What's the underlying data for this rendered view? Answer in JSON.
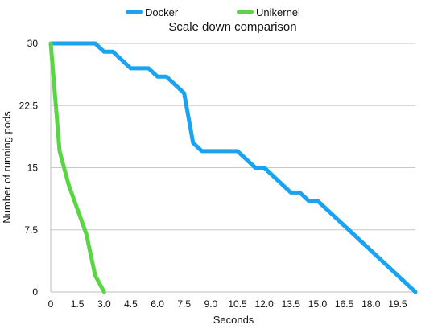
{
  "chart_data": {
    "type": "line",
    "title": "Scale down comparison",
    "xlabel": "Seconds",
    "ylabel": "Number of running pods",
    "xlim": [
      0,
      20.5
    ],
    "ylim": [
      0,
      30
    ],
    "x_ticks": [
      "0",
      "1.5",
      "3.0",
      "4.5",
      "6.0",
      "7.5",
      "9.0",
      "10.5",
      "12.0",
      "13.5",
      "15.0",
      "16.5",
      "18.0",
      "19.5"
    ],
    "x_tick_values": [
      0,
      1.5,
      3.0,
      4.5,
      6.0,
      7.5,
      9.0,
      10.5,
      12.0,
      13.5,
      15.0,
      16.5,
      18.0,
      19.5
    ],
    "y_ticks": [
      "0",
      "7.5",
      "15",
      "22.5",
      "30"
    ],
    "y_tick_values": [
      0,
      7.5,
      15,
      22.5,
      30
    ],
    "grid": true,
    "legend_position": "top-center",
    "series": [
      {
        "name": "Docker",
        "color": "#1aa3f0",
        "points": [
          [
            0,
            30
          ],
          [
            2.5,
            30
          ],
          [
            3.0,
            29
          ],
          [
            3.5,
            29
          ],
          [
            4.5,
            27
          ],
          [
            5.5,
            27
          ],
          [
            6.0,
            26
          ],
          [
            6.5,
            26
          ],
          [
            7.5,
            24
          ],
          [
            8.0,
            18
          ],
          [
            8.5,
            17
          ],
          [
            10.5,
            17
          ],
          [
            11.5,
            15
          ],
          [
            12.0,
            15
          ],
          [
            13.5,
            12
          ],
          [
            14.0,
            12
          ],
          [
            14.5,
            11
          ],
          [
            15.0,
            11
          ],
          [
            20.5,
            0
          ]
        ]
      },
      {
        "name": "Unikernel",
        "color": "#5ad645",
        "points": [
          [
            0,
            30
          ],
          [
            0.5,
            17
          ],
          [
            1.0,
            13
          ],
          [
            2.0,
            7
          ],
          [
            2.5,
            2
          ],
          [
            3.0,
            0
          ]
        ]
      }
    ]
  }
}
